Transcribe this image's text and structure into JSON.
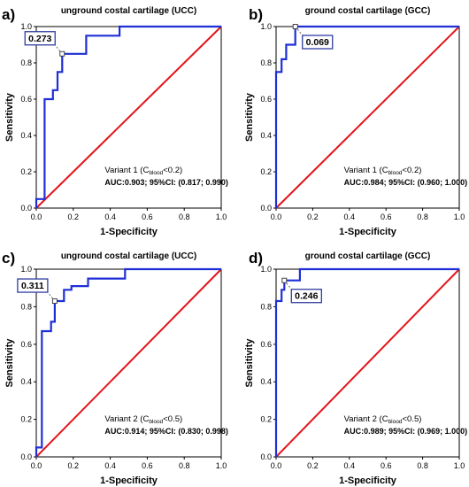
{
  "colors": {
    "roc_curve": "#1f2fd6",
    "reference_line": "#e3141b",
    "frame": "#000000",
    "label_box_border": "#2f3da0"
  },
  "chart_data": [
    {
      "type": "line",
      "panel_label": "a)",
      "title": "unground costal cartilage (UCC)",
      "xlabel": "1-Specificity",
      "ylabel": "Sensitivity",
      "xlim": [
        0,
        1
      ],
      "ylim": [
        0,
        1
      ],
      "xticks": [
        "0.0",
        "0.2",
        "0.4",
        "0.6",
        "0.8",
        "1.0"
      ],
      "yticks": [
        "0.0",
        "0.2",
        "0.4",
        "0.6",
        "0.8",
        "1.0"
      ],
      "grid": false,
      "roc": {
        "x": [
          0,
          0,
          0.045,
          0.045,
          0.09,
          0.09,
          0.115,
          0.115,
          0.14,
          0.14,
          0.27,
          0.27,
          0.45,
          0.45,
          1
        ],
        "y": [
          0,
          0.05,
          0.05,
          0.6,
          0.6,
          0.65,
          0.65,
          0.75,
          0.75,
          0.85,
          0.85,
          0.95,
          0.95,
          1,
          1
        ]
      },
      "reference": {
        "x": [
          0,
          1
        ],
        "y": [
          0,
          1
        ]
      },
      "cutoff": {
        "label": "0.273",
        "x": 0.14,
        "y": 0.85,
        "box_at": "upper-left"
      },
      "annotation": {
        "variant_label": "Variant 1 (C",
        "variant_sub": "blood",
        "variant_cond": "<0.2)",
        "auc_text": "AUC:0.903; 95%CI: (0.817; 0.990)"
      }
    },
    {
      "type": "line",
      "panel_label": "b)",
      "title": "ground costal cartilage (GCC)",
      "xlabel": "1-Specificity",
      "ylabel": "Sensitivity",
      "xlim": [
        0,
        1
      ],
      "ylim": [
        0,
        1
      ],
      "xticks": [
        "0.0",
        "0.2",
        "0.4",
        "0.6",
        "0.8",
        "1.0"
      ],
      "yticks": [
        "0.0",
        "0.2",
        "0.4",
        "0.6",
        "0.8",
        "1.0"
      ],
      "grid": false,
      "roc": {
        "x": [
          0,
          0,
          0.03,
          0.03,
          0.055,
          0.055,
          0.105,
          0.105,
          1
        ],
        "y": [
          0,
          0.75,
          0.75,
          0.82,
          0.82,
          0.9,
          0.9,
          1,
          1
        ]
      },
      "reference": {
        "x": [
          0,
          1
        ],
        "y": [
          0,
          1
        ]
      },
      "cutoff": {
        "label": "0.069",
        "x": 0.105,
        "y": 1,
        "box_at": "lower-right"
      },
      "annotation": {
        "variant_label": "Variant 1 (C",
        "variant_sub": "blood",
        "variant_cond": "<0.2)",
        "auc_text": "AUC:0.984; 95%CI: (0.960; 1.000)"
      }
    },
    {
      "type": "line",
      "panel_label": "c)",
      "title": "unground costal cartilage (UCC)",
      "xlabel": "1-Specificity",
      "ylabel": "Sensitivity",
      "xlim": [
        0,
        1
      ],
      "ylim": [
        0,
        1
      ],
      "xticks": [
        "0.0",
        "0.2",
        "0.4",
        "0.6",
        "0.8",
        "1.0"
      ],
      "yticks": [
        "0.0",
        "0.2",
        "0.4",
        "0.6",
        "0.8",
        "1.0"
      ],
      "grid": false,
      "roc": {
        "x": [
          0,
          0,
          0.03,
          0.03,
          0.08,
          0.08,
          0.1,
          0.1,
          0.15,
          0.15,
          0.19,
          0.19,
          0.28,
          0.28,
          0.48,
          0.48,
          1
        ],
        "y": [
          0,
          0.05,
          0.05,
          0.67,
          0.67,
          0.72,
          0.72,
          0.83,
          0.83,
          0.89,
          0.89,
          0.91,
          0.91,
          0.95,
          0.95,
          1,
          1
        ]
      },
      "reference": {
        "x": [
          0,
          1
        ],
        "y": [
          0,
          1
        ]
      },
      "cutoff": {
        "label": "0.311",
        "x": 0.1,
        "y": 0.83,
        "box_at": "upper-left"
      },
      "annotation": {
        "variant_label": "Variant 2 (C",
        "variant_sub": "blood",
        "variant_cond": "<0.5)",
        "auc_text": "AUC:0.914; 95%CI: (0.830; 0.998)"
      }
    },
    {
      "type": "line",
      "panel_label": "d)",
      "title": "ground costal cartilage (GCC)",
      "xlabel": "1-Specificity",
      "ylabel": "Sensitivity",
      "xlim": [
        0,
        1
      ],
      "ylim": [
        0,
        1
      ],
      "xticks": [
        "0.0",
        "0.2",
        "0.4",
        "0.6",
        "0.8",
        "1.0"
      ],
      "yticks": [
        "0.0",
        "0.2",
        "0.4",
        "0.6",
        "0.8",
        "1.0"
      ],
      "grid": false,
      "roc": {
        "x": [
          0,
          0,
          0.03,
          0.03,
          0.045,
          0.045,
          0.13,
          0.13,
          1
        ],
        "y": [
          0,
          0.83,
          0.83,
          0.89,
          0.89,
          0.94,
          0.94,
          1,
          1
        ]
      },
      "reference": {
        "x": [
          0,
          1
        ],
        "y": [
          0,
          1
        ]
      },
      "cutoff": {
        "label": "0.246",
        "x": 0.045,
        "y": 0.94,
        "box_at": "lower-right"
      },
      "annotation": {
        "variant_label": "Variant 2 (C",
        "variant_sub": "blood",
        "variant_cond": "<0.5)",
        "auc_text": "AUC:0.989; 95%CI: (0.969; 1.000)"
      }
    }
  ]
}
